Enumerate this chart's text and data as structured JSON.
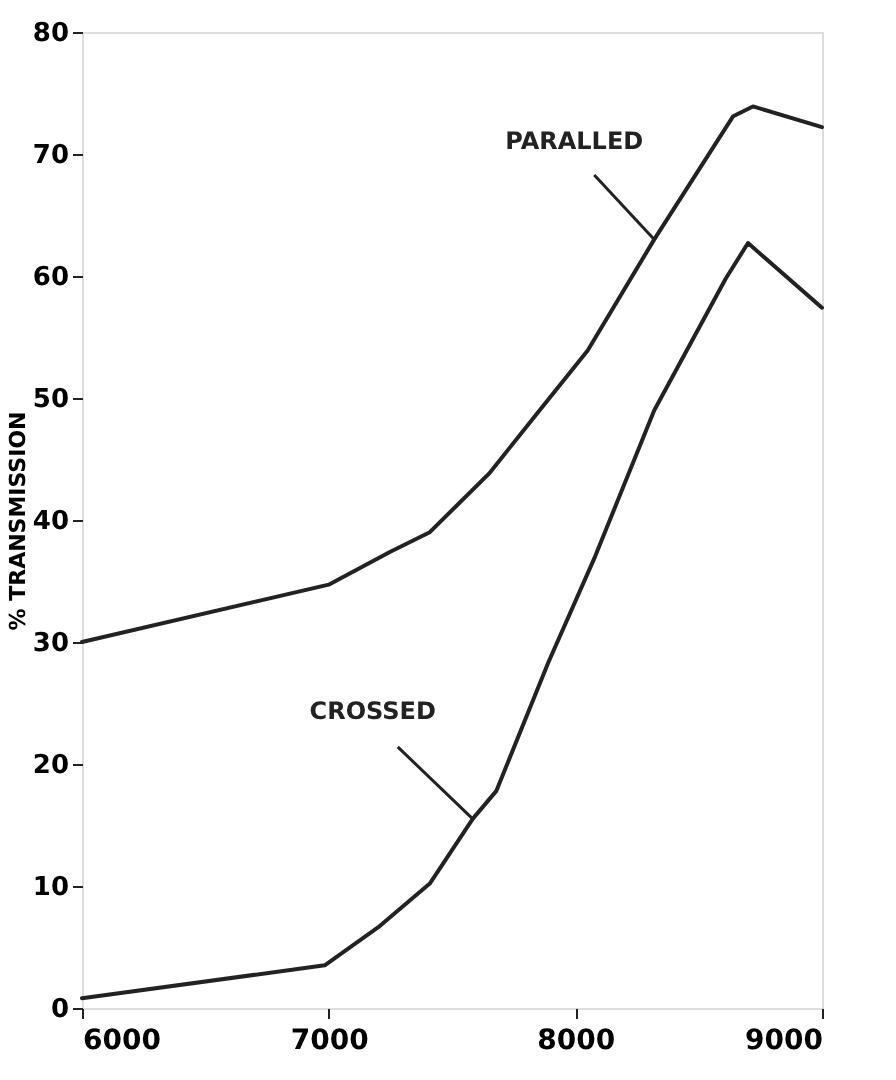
{
  "chart_data": {
    "type": "line",
    "ylabel": "% TRANSMISSION",
    "xlim": [
      6000,
      9000
    ],
    "xticks": [
      6000,
      7000,
      8000,
      9000
    ],
    "ylim": [
      0,
      80
    ],
    "yticks": [
      0,
      10,
      20,
      30,
      40,
      50,
      60,
      70,
      80
    ],
    "grid": false,
    "marker": "none",
    "line_style": "solid",
    "series": [
      {
        "color": "#222222",
        "x": [
          6000,
          7000,
          7250,
          7410,
          7650,
          7840,
          8050,
          8320,
          8640,
          8720,
          9000
        ],
        "values": [
          30,
          34.7,
          37.4,
          39,
          43.8,
          48.6,
          53.9,
          63,
          73.1,
          73.9,
          72.2
        ]
      },
      {
        "color": "#222222",
        "x": [
          6000,
          6984,
          7200,
          7410,
          7584,
          7680,
          7890,
          8080,
          8320,
          8610,
          8700,
          9000
        ],
        "values": [
          0.8,
          3.5,
          6.6,
          10.2,
          15.5,
          17.8,
          28.3,
          37,
          49,
          59.8,
          62.7,
          57.4
        ]
      }
    ],
    "annotations": [
      {
        "text": "PARALLED",
        "x": 8320,
        "y": 63
      },
      {
        "text": "CROSSED",
        "x": 7584,
        "y": 15.5
      }
    ]
  }
}
